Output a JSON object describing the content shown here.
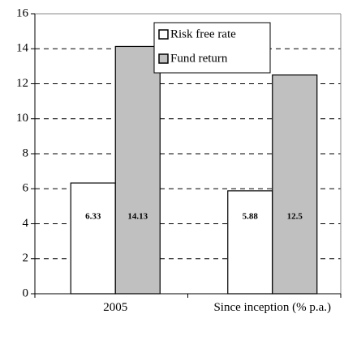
{
  "chart_data": {
    "type": "bar",
    "categories": [
      "2005",
      "Since inception (% p.a.)"
    ],
    "series": [
      {
        "name": "Risk free rate",
        "color": "#ffffff",
        "values": [
          6.33,
          5.88
        ]
      },
      {
        "name": "Fund return",
        "color": "#c0c0c0",
        "values": [
          14.13,
          12.5
        ]
      }
    ],
    "ylim": [
      0,
      16
    ],
    "yticks": [
      0,
      2,
      4,
      6,
      8,
      10,
      12,
      14,
      16
    ],
    "grid": true,
    "legend": "top"
  }
}
